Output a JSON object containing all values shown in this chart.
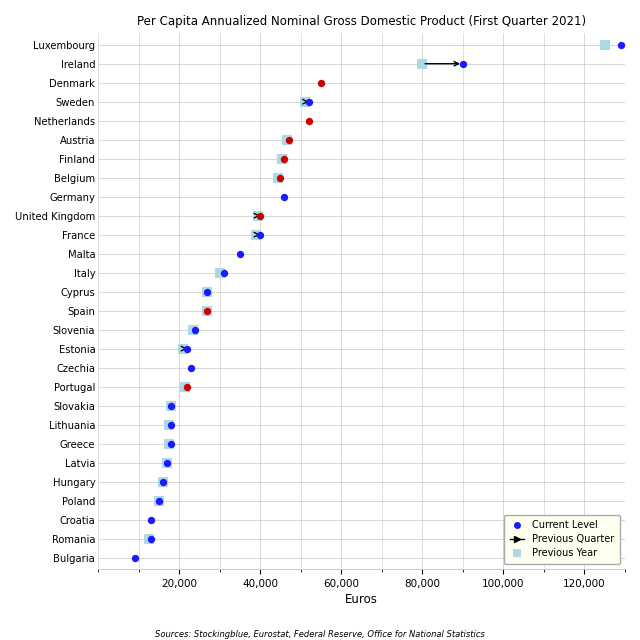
{
  "title": "Per Capita Annualized Nominal Gross Domestic Product (First Quarter 2021)",
  "xlabel": "Euros",
  "source": "Sources: Stockingblue, Eurostat, Federal Reserve, Office for National Statistics",
  "countries": [
    "Luxembourg",
    "Ireland",
    "Denmark",
    "Sweden",
    "Netherlands",
    "Austria",
    "Finland",
    "Belgium",
    "Germany",
    "United Kingdom",
    "France",
    "Malta",
    "Italy",
    "Cyprus",
    "Spain",
    "Slovenia",
    "Estonia",
    "Czechia",
    "Portugal",
    "Slovakia",
    "Lithuania",
    "Greece",
    "Latvia",
    "Hungary",
    "Poland",
    "Croatia",
    "Romania",
    "Bulgaria"
  ],
  "current": [
    129000,
    90000,
    55000,
    52000,
    52000,
    47000,
    46000,
    45000,
    46000,
    40000,
    40000,
    35000,
    31000,
    27000,
    27000,
    24000,
    22000,
    23000,
    22000,
    18000,
    18000,
    18000,
    17000,
    16000,
    15000,
    13000,
    13000,
    9000
  ],
  "prev_quarter": [
    null,
    80000,
    null,
    51000,
    null,
    null,
    null,
    null,
    null,
    39500,
    39000,
    null,
    null,
    null,
    null,
    null,
    21000,
    null,
    null,
    null,
    null,
    null,
    null,
    null,
    null,
    null,
    null,
    null
  ],
  "prev_year": [
    125000,
    80000,
    null,
    51000,
    null,
    46500,
    45500,
    44500,
    null,
    39500,
    39000,
    null,
    30000,
    27000,
    27000,
    23500,
    21000,
    null,
    21500,
    18000,
    17500,
    17500,
    17000,
    16000,
    15000,
    null,
    12500,
    null
  ],
  "current_is_red": [
    false,
    false,
    true,
    false,
    true,
    true,
    true,
    true,
    false,
    true,
    false,
    false,
    false,
    false,
    true,
    false,
    false,
    false,
    true,
    false,
    false,
    false,
    false,
    false,
    false,
    false,
    false,
    false
  ],
  "dot_blue": "#1a1aff",
  "dot_red": "#cc0000",
  "prev_year_color": "#ADD8E6",
  "prev_quarter_color": "#000000",
  "grid_color": "#C8C8C8",
  "legend_bg": "#FFFFF0",
  "xlim": [
    0,
    130000
  ],
  "xticks": [
    20000,
    40000,
    60000,
    80000,
    100000,
    120000
  ],
  "figsize": [
    6.4,
    6.4
  ],
  "dpi": 100
}
